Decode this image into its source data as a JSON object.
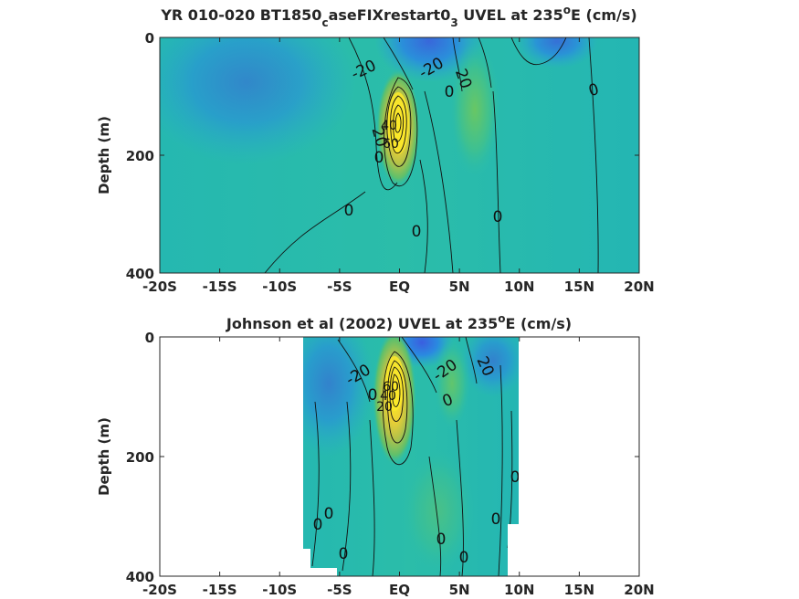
{
  "chart_data": [
    {
      "type": "heatmap",
      "title_parts": {
        "a": "YR 010-020 BT1850",
        "sub1": "c",
        "b": "aseFIXrestart0",
        "sub2": "3",
        "c": " UVEL at 235",
        "sup": "o",
        "d": "E (cm/s)"
      },
      "ylabel": "Depth (m)",
      "x_ticks": [
        "-20S",
        "-15S",
        "-10S",
        "-5S",
        "EQ",
        "5N",
        "10N",
        "15N",
        "20N"
      ],
      "y_ticks": [
        "0",
        "200",
        "400"
      ],
      "xlim": [
        -20,
        20
      ],
      "ylim": [
        0,
        400
      ],
      "data_extent_lat": [
        -20,
        20
      ],
      "contour_labels": [
        "-20",
        "-20",
        "20",
        "0",
        "0",
        "20",
        "40",
        "60",
        "0",
        "0",
        "0",
        "0"
      ],
      "features": [
        {
          "kind": "max",
          "lat": 0,
          "depth": 130,
          "value": 80,
          "rx": 1.3,
          "ry": 55
        },
        {
          "kind": "min",
          "lat": 3,
          "depth": 30,
          "value": -25,
          "rx": 2.5,
          "ry": 40
        },
        {
          "kind": "min",
          "lat": -3,
          "depth": 20,
          "value": -15,
          "rx": 5,
          "ry": 60
        },
        {
          "kind": "min",
          "lat": 11,
          "depth": 20,
          "value": -12,
          "rx": 3,
          "ry": 40
        },
        {
          "kind": "max",
          "lat": 6,
          "depth": 60,
          "value": 15,
          "rx": 1.2,
          "ry": 60
        }
      ]
    },
    {
      "type": "heatmap",
      "title_parts": {
        "a": "Johnson et al (2002) UVEL at 235",
        "sup": "o",
        "d": "E (cm/s)"
      },
      "ylabel": "Depth (m)",
      "x_ticks": [
        "-20S",
        "-15S",
        "-10S",
        "-5S",
        "EQ",
        "5N",
        "10N",
        "15N",
        "20N"
      ],
      "y_ticks": [
        "0",
        "200",
        "400"
      ],
      "xlim": [
        -20,
        20
      ],
      "ylim": [
        0,
        400
      ],
      "data_extent_lat": [
        -8,
        10
      ],
      "contour_labels": [
        "-20",
        "-20",
        "20",
        "0",
        "0",
        "20",
        "40",
        "60",
        "0",
        "0",
        "0",
        "0",
        "0",
        "0",
        "0"
      ],
      "features": [
        {
          "kind": "max",
          "lat": 0,
          "depth": 90,
          "value": 85,
          "rx": 1.1,
          "ry": 45
        },
        {
          "kind": "min",
          "lat": 2,
          "depth": 15,
          "value": -30,
          "rx": 2,
          "ry": 35
        },
        {
          "kind": "min",
          "lat": -4,
          "depth": 10,
          "value": -15,
          "rx": 3,
          "ry": 50
        },
        {
          "kind": "max",
          "lat": 5,
          "depth": 40,
          "value": 20,
          "rx": 1.5,
          "ry": 40
        }
      ]
    }
  ]
}
